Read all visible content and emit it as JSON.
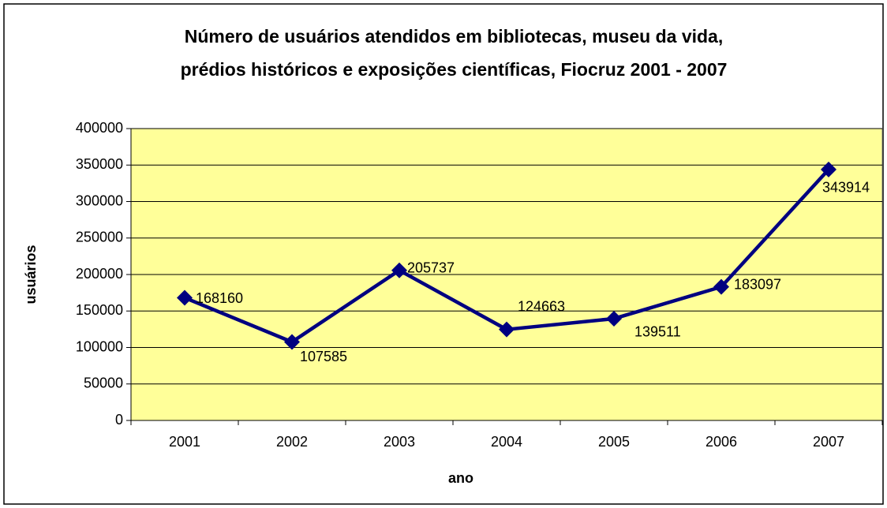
{
  "chart_data": {
    "type": "line",
    "title": [
      "Número de usuários atendidos em bibliotecas, museu da vida,",
      "prédios históricos e exposições científicas, Fiocruz 2001 - 2007"
    ],
    "x_label": "ano",
    "y_label": "usuários",
    "categories": [
      "2001",
      "2002",
      "2003",
      "2004",
      "2005",
      "2006",
      "2007"
    ],
    "series": [
      {
        "name": "usuários",
        "color": "#000080",
        "values": [
          168160,
          107585,
          205737,
          124663,
          139511,
          183097,
          343914
        ]
      }
    ],
    "ylim": [
      0,
      400000
    ],
    "yticks": [
      0,
      50000,
      100000,
      150000,
      200000,
      250000,
      300000,
      350000,
      400000
    ],
    "grid": true,
    "plot_background": "#ffff99"
  }
}
